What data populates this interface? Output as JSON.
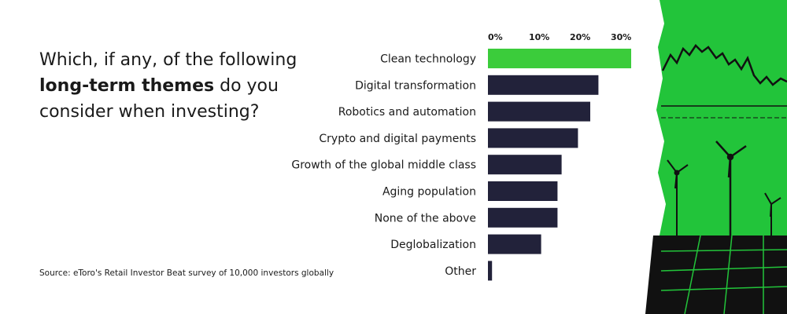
{
  "question": {
    "part1": "Which, if any, of the following",
    "strong": "long-term themes",
    "part2": "do you consider when investing?"
  },
  "source": "Source: eToro's Retail Investor Beat survey of 10,000 investors globally",
  "colors": {
    "highlight": "#3bcc3b",
    "bar": "#22223a",
    "art_green": "#22c43a",
    "art_ink": "#111111"
  },
  "art": {
    "icon": "wind-turbines-solar-panels-illustration"
  },
  "chart_data": {
    "type": "bar",
    "orientation": "horizontal",
    "categories": [
      "Clean technology",
      "Digital transformation",
      "Robotics and automation",
      "Crypto and digital payments",
      "Growth of the global middle class",
      "Aging population",
      "None of the above",
      "Deglobalization",
      "Other"
    ],
    "values": [
      35,
      27,
      25,
      22,
      18,
      17,
      17,
      13,
      1
    ],
    "highlight_index": 0,
    "xlim": [
      0,
      35
    ],
    "ticks": [
      {
        "value": 0,
        "label": "0%"
      },
      {
        "value": 10,
        "label": "10%"
      },
      {
        "value": 20,
        "label": "20%"
      },
      {
        "value": 30,
        "label": "30%"
      }
    ],
    "title": "",
    "xlabel": "",
    "ylabel": "",
    "grid": false
  }
}
